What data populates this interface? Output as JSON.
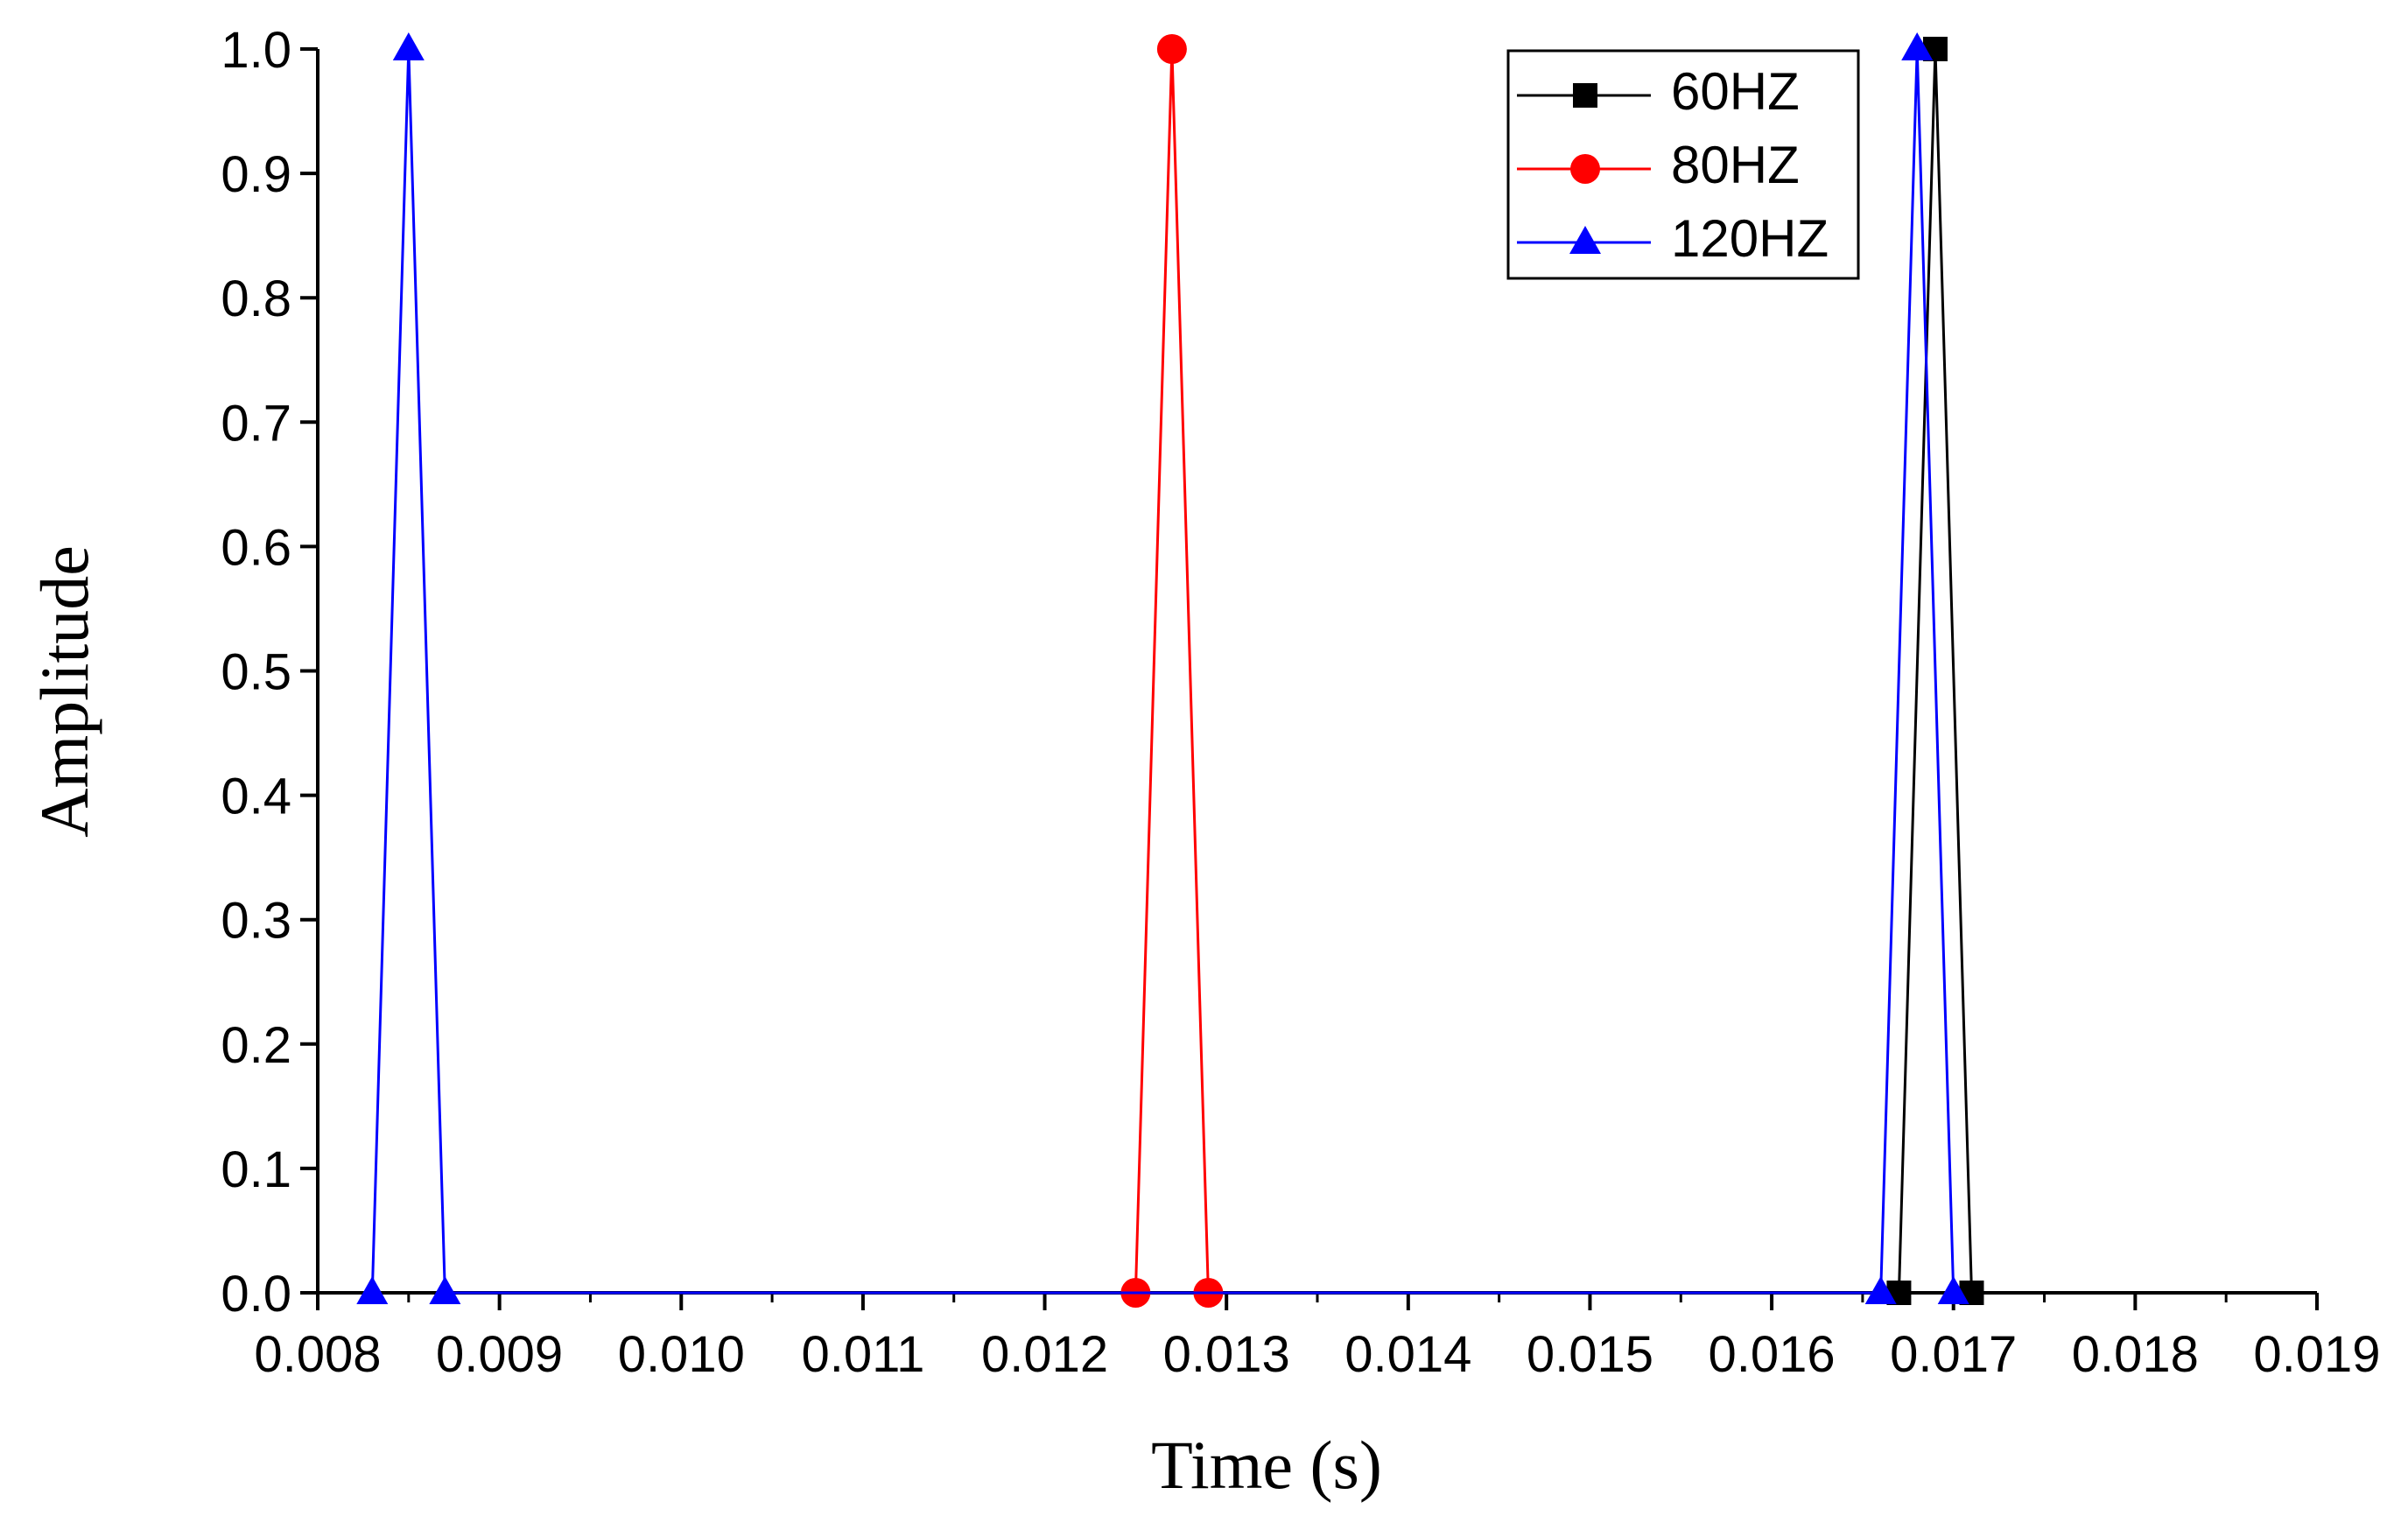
{
  "chart_data": {
    "type": "line",
    "x_label": "Time (s)",
    "y_label": "Amplitude",
    "xlim": [
      0.008,
      0.019
    ],
    "xticks": [
      {
        "value": 0.008,
        "label": "0.008"
      },
      {
        "value": 0.009,
        "label": "0.009"
      },
      {
        "value": 0.01,
        "label": "0.010"
      },
      {
        "value": 0.011,
        "label": "0.011"
      },
      {
        "value": 0.012,
        "label": "0.012"
      },
      {
        "value": 0.013,
        "label": "0.013"
      },
      {
        "value": 0.014,
        "label": "0.014"
      },
      {
        "value": 0.015,
        "label": "0.015"
      },
      {
        "value": 0.016,
        "label": "0.016"
      },
      {
        "value": 0.017,
        "label": "0.017"
      },
      {
        "value": 0.018,
        "label": "0.018"
      },
      {
        "value": 0.019,
        "label": "0.019"
      }
    ],
    "ylim": [
      0,
      1
    ],
    "yticks": [
      {
        "value": 0,
        "label": "0.0"
      },
      0.1,
      0.2,
      0.3,
      0.4,
      0.5,
      0.6,
      0.7,
      0.8,
      0.9,
      {
        "value": 1,
        "label": "1.0"
      }
    ],
    "legend": "upper right",
    "series": [
      {
        "name": "60HZ",
        "color": "#000000",
        "marker": "square",
        "x": [
          0.0167,
          0.0169,
          0.0171
        ],
        "values": [
          0,
          1,
          0
        ]
      },
      {
        "name": "80HZ",
        "color": "#ff0000",
        "marker": "circle",
        "x": [
          0.0125,
          0.0127,
          0.0129
        ],
        "values": [
          0,
          1,
          0
        ]
      },
      {
        "name": "120HZ",
        "color": "#0000ff",
        "marker": "triangle",
        "x": [
          0.0083,
          0.0085,
          0.0087,
          0.0166,
          0.0168,
          0.017
        ],
        "values": [
          0,
          1,
          0,
          0,
          1,
          0
        ]
      }
    ]
  }
}
